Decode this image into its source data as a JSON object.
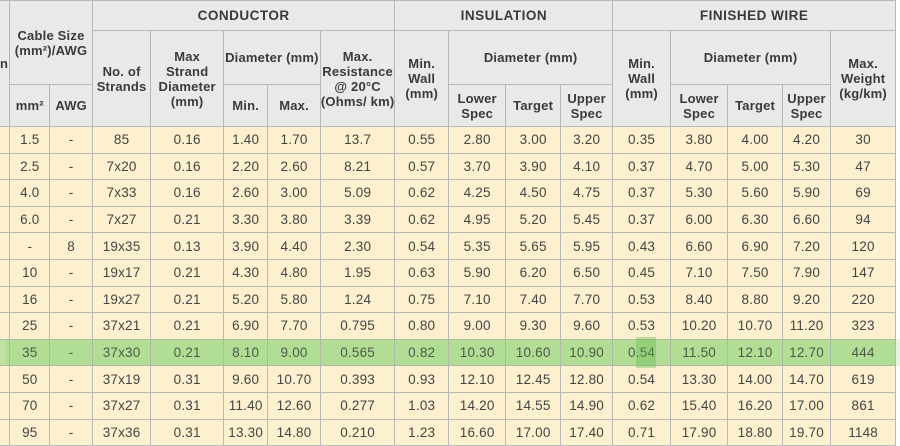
{
  "table": {
    "group_headers": {
      "cable_size": "Cable Size (mm²)/AWG",
      "conductor": "CONDUCTOR",
      "insulation": "INSULATION",
      "finished_wire": "FINISHED WIRE"
    },
    "sub_headers": {
      "first_col": "n",
      "mm2": "mm²",
      "awg": "AWG",
      "no_of_strands": "No. of Strands",
      "max_strand_diameter": "Max Strand Diameter (mm)",
      "conductor_diameter": "Diameter (mm)",
      "min": "Min.",
      "max": "Max.",
      "max_resistance": "Max. Resistance @ 20°C (Ohms/ km)",
      "ins_min_wall": "Min. Wall (mm)",
      "ins_diameter": "Diameter (mm)",
      "ins_lower_spec": "Lower Spec",
      "ins_target": "Target",
      "ins_upper_spec": "Upper Spec",
      "fw_min_wall": "Min. Wall (mm)",
      "fw_diameter": "Diameter (mm)",
      "fw_lower_spec": "Lower Spec",
      "fw_target": "Target",
      "fw_upper_spec": "Upper Spec",
      "max_weight": "Max. Weight (kg/km)"
    },
    "rows": [
      [
        "1.5",
        "-",
        "85",
        "0.16",
        "1.40",
        "1.70",
        "13.7",
        "0.55",
        "2.80",
        "3.00",
        "3.20",
        "0.35",
        "3.80",
        "4.00",
        "4.20",
        "30"
      ],
      [
        "2.5",
        "-",
        "7x20",
        "0.16",
        "2.20",
        "2.60",
        "8.21",
        "0.57",
        "3.70",
        "3.90",
        "4.10",
        "0.37",
        "4.70",
        "5.00",
        "5.30",
        "47"
      ],
      [
        "4.0",
        "-",
        "7x33",
        "0.16",
        "2.60",
        "3.00",
        "5.09",
        "0.62",
        "4.25",
        "4.50",
        "4.75",
        "0.37",
        "5.30",
        "5.60",
        "5.90",
        "69"
      ],
      [
        "6.0",
        "-",
        "7x27",
        "0.21",
        "3.30",
        "3.80",
        "3.39",
        "0.62",
        "4.95",
        "5.20",
        "5.45",
        "0.37",
        "6.00",
        "6.30",
        "6.60",
        "94"
      ],
      [
        "-",
        "8",
        "19x35",
        "0.13",
        "3.90",
        "4.40",
        "2.30",
        "0.54",
        "5.35",
        "5.65",
        "5.95",
        "0.43",
        "6.60",
        "6.90",
        "7.20",
        "120"
      ],
      [
        "10",
        "-",
        "19x17",
        "0.21",
        "4.30",
        "4.80",
        "1.95",
        "0.63",
        "5.90",
        "6.20",
        "6.50",
        "0.45",
        "7.10",
        "7.50",
        "7.90",
        "147"
      ],
      [
        "16",
        "-",
        "19x27",
        "0.21",
        "5.20",
        "5.80",
        "1.24",
        "0.75",
        "7.10",
        "7.40",
        "7.70",
        "0.53",
        "8.40",
        "8.80",
        "9.20",
        "220"
      ],
      [
        "25",
        "-",
        "37x21",
        "0.21",
        "6.90",
        "7.70",
        "0.795",
        "0.80",
        "9.00",
        "9.30",
        "9.60",
        "0.53",
        "10.20",
        "10.70",
        "11.20",
        "323"
      ],
      [
        "35",
        "-",
        "37x30",
        "0.21",
        "8.10",
        "9.00",
        "0.565",
        "0.82",
        "10.30",
        "10.60",
        "10.90",
        "0.54",
        "11.50",
        "12.10",
        "12.70",
        "444"
      ],
      [
        "50",
        "-",
        "37x19",
        "0.31",
        "9.60",
        "10.70",
        "0.393",
        "0.93",
        "12.10",
        "12.45",
        "12.80",
        "0.54",
        "13.30",
        "14.00",
        "14.70",
        "619"
      ],
      [
        "70",
        "-",
        "37x27",
        "0.31",
        "11.40",
        "12.60",
        "0.277",
        "1.03",
        "14.20",
        "14.55",
        "14.90",
        "0.62",
        "15.40",
        "16.20",
        "17.00",
        "861"
      ],
      [
        "95",
        "-",
        "37x36",
        "0.31",
        "13.30",
        "14.80",
        "0.210",
        "1.23",
        "16.60",
        "17.00",
        "17.40",
        "0.71",
        "17.90",
        "18.80",
        "19.70",
        "1148"
      ]
    ],
    "highlighted_row": 8,
    "colors": {
      "header_bg": "#e9e9e9",
      "body_bg": "#fdf0cf",
      "highlight": "#bfe2a2",
      "border": "#b8b8b8"
    }
  }
}
